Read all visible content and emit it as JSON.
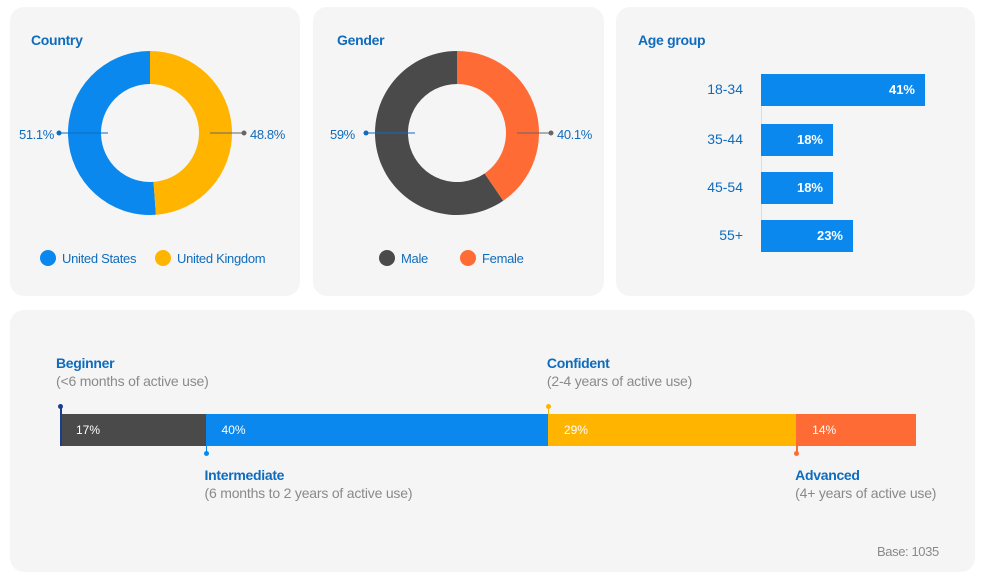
{
  "colors": {
    "blue": "#0b88ee",
    "yellow": "#ffb400",
    "dark": "#4a4a4a",
    "orange": "#ff6b35",
    "accent": "#0f6cbd"
  },
  "chart_data": [
    {
      "type": "pie",
      "title": "Country",
      "categories": [
        "United States",
        "United Kingdom"
      ],
      "values": [
        51.1,
        48.8
      ],
      "labels": [
        "51.1%",
        "48.8%"
      ],
      "colors": [
        "#0b88ee",
        "#ffb400"
      ],
      "legend": "bottom"
    },
    {
      "type": "pie",
      "title": "Gender",
      "categories": [
        "Male",
        "Female"
      ],
      "values": [
        59,
        40.1
      ],
      "labels": [
        "59%",
        "40.1%"
      ],
      "colors": [
        "#4a4a4a",
        "#ff6b35"
      ],
      "legend": "bottom"
    },
    {
      "type": "bar",
      "title": "Age group",
      "orientation": "horizontal",
      "categories": [
        "18-34",
        "35-44",
        "45-54",
        "55+"
      ],
      "values": [
        41,
        18,
        18,
        23
      ],
      "labels": [
        "41%",
        "18%",
        "18%",
        "23%"
      ],
      "color": "#0b88ee"
    },
    {
      "type": "bar",
      "orientation": "horizontal",
      "stacked": true,
      "series": [
        {
          "name": "Beginner",
          "description": "(<6 months of active use)",
          "value": 17,
          "label": "17%",
          "color": "#4a4a4a"
        },
        {
          "name": "Intermediate",
          "description": "(6 months to 2 years of active use)",
          "value": 40,
          "label": "40%",
          "color": "#0b88ee"
        },
        {
          "name": "Confident",
          "description": "(2-4 years of active use)",
          "value": 29,
          "label": "29%",
          "color": "#ffb400"
        },
        {
          "name": "Advanced",
          "description": "(4+ years of active use)",
          "value": 14,
          "label": "14%",
          "color": "#ff6b35"
        }
      ],
      "footnote": "Base: 1035"
    }
  ]
}
